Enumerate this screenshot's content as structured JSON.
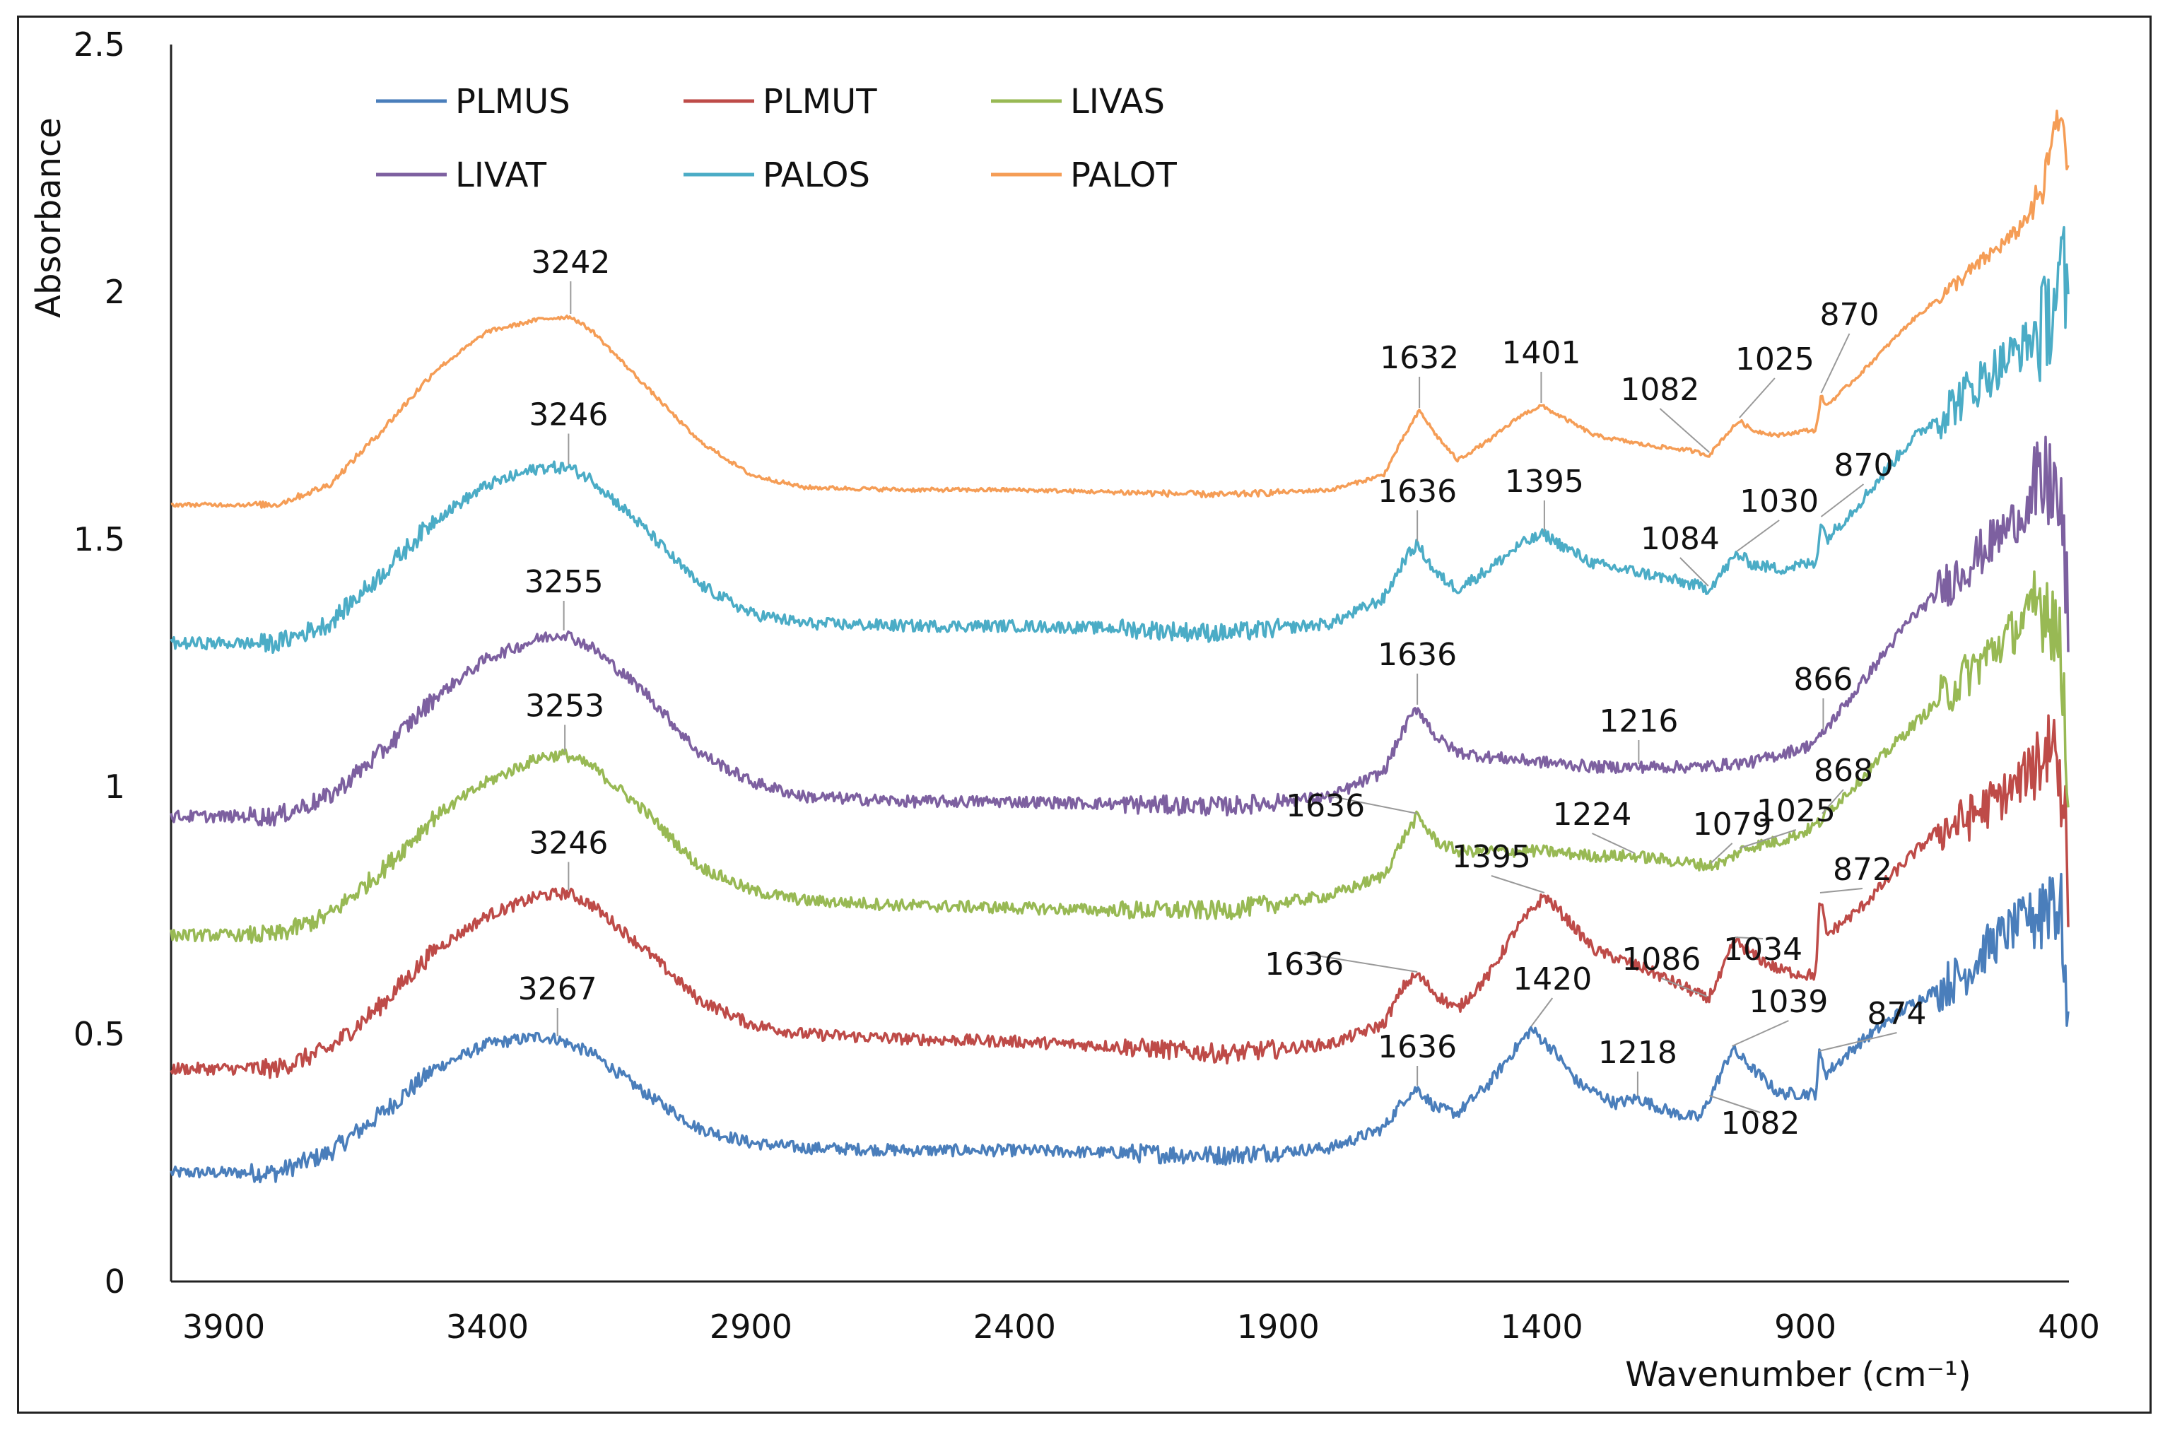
{
  "chart_data": {
    "type": "line",
    "title": "",
    "xlabel": "Wavenumber (cm⁻¹)",
    "ylabel": "Absorbance",
    "xlim": [
      4000,
      400
    ],
    "ylim": [
      0,
      2.5
    ],
    "x_ticks": [
      3900,
      3400,
      2900,
      2400,
      1900,
      1400,
      900,
      400
    ],
    "y_ticks": [
      0,
      0.5,
      1,
      1.5,
      2,
      2.5
    ],
    "y_tick_labels": [
      "0",
      "0.5",
      "1",
      "1.5",
      "2",
      "2.5"
    ],
    "grid": false,
    "legend_position": "top-left",
    "series": [
      {
        "name": "PLMUS",
        "color": "#4a7ebb",
        "noise": 0.012,
        "x": [
          4000,
          3800,
          3700,
          3600,
          3500,
          3400,
          3300,
          3267,
          3200,
          3100,
          3000,
          2900,
          2800,
          2600,
          2400,
          2200,
          2000,
          1800,
          1700,
          1660,
          1636,
          1600,
          1560,
          1500,
          1450,
          1420,
          1380,
          1330,
          1260,
          1218,
          1150,
          1100,
          1082,
          1060,
          1039,
          1000,
          950,
          900,
          880,
          874,
          860,
          800,
          700,
          600,
          550,
          500,
          450,
          430,
          410,
          400
        ],
        "y": [
          0.22,
          0.22,
          0.26,
          0.34,
          0.43,
          0.48,
          0.495,
          0.49,
          0.46,
          0.38,
          0.31,
          0.28,
          0.27,
          0.265,
          0.265,
          0.26,
          0.255,
          0.27,
          0.31,
          0.37,
          0.39,
          0.35,
          0.34,
          0.4,
          0.47,
          0.51,
          0.47,
          0.4,
          0.36,
          0.37,
          0.34,
          0.33,
          0.37,
          0.42,
          0.47,
          0.43,
          0.38,
          0.38,
          0.38,
          0.46,
          0.42,
          0.48,
          0.56,
          0.62,
          0.68,
          0.72,
          0.76,
          0.8,
          0.7,
          0.4
        ]
      },
      {
        "name": "PLMUT",
        "color": "#be4b48",
        "noise": 0.012,
        "x": [
          4000,
          3800,
          3700,
          3600,
          3500,
          3400,
          3300,
          3246,
          3200,
          3100,
          3000,
          2900,
          2800,
          2600,
          2400,
          2200,
          2000,
          1800,
          1700,
          1660,
          1636,
          1600,
          1560,
          1500,
          1450,
          1395,
          1350,
          1300,
          1200,
          1120,
          1086,
          1060,
          1034,
          1000,
          950,
          900,
          880,
          872,
          860,
          800,
          700,
          650,
          600,
          500,
          450,
          430,
          410,
          400
        ],
        "y": [
          0.43,
          0.43,
          0.47,
          0.56,
          0.67,
          0.74,
          0.78,
          0.785,
          0.76,
          0.67,
          0.57,
          0.52,
          0.5,
          0.49,
          0.485,
          0.475,
          0.46,
          0.48,
          0.52,
          0.6,
          0.62,
          0.58,
          0.55,
          0.62,
          0.71,
          0.78,
          0.73,
          0.67,
          0.63,
          0.59,
          0.57,
          0.62,
          0.69,
          0.66,
          0.63,
          0.62,
          0.62,
          0.78,
          0.7,
          0.75,
          0.86,
          0.91,
          0.93,
          1.0,
          1.07,
          1.1,
          1.0,
          0.75
        ]
      },
      {
        "name": "LIVAS",
        "color": "#98b954",
        "noise": 0.012,
        "x": [
          4000,
          3800,
          3700,
          3600,
          3500,
          3400,
          3300,
          3253,
          3200,
          3100,
          3000,
          2900,
          2800,
          2600,
          2400,
          2200,
          2000,
          1800,
          1700,
          1660,
          1636,
          1600,
          1560,
          1500,
          1400,
          1300,
          1224,
          1150,
          1079,
          1050,
          1025,
          1000,
          950,
          900,
          870,
          866,
          800,
          700,
          600,
          500,
          450,
          430,
          410,
          400
        ],
        "y": [
          0.7,
          0.7,
          0.74,
          0.83,
          0.94,
          1.01,
          1.06,
          1.065,
          1.04,
          0.95,
          0.84,
          0.79,
          0.77,
          0.76,
          0.755,
          0.75,
          0.75,
          0.78,
          0.82,
          0.9,
          0.94,
          0.89,
          0.87,
          0.87,
          0.87,
          0.86,
          0.86,
          0.85,
          0.84,
          0.85,
          0.87,
          0.88,
          0.89,
          0.91,
          0.93,
          0.94,
          1.01,
          1.12,
          1.22,
          1.32,
          1.38,
          1.36,
          1.2,
          1.0
        ]
      },
      {
        "name": "LIVAT",
        "color": "#7d60a0",
        "noise": 0.012,
        "x": [
          4000,
          3800,
          3700,
          3600,
          3500,
          3400,
          3300,
          3255,
          3200,
          3100,
          3000,
          2900,
          2800,
          2600,
          2400,
          2200,
          2000,
          1800,
          1700,
          1660,
          1636,
          1600,
          1560,
          1500,
          1400,
          1300,
          1216,
          1100,
          1000,
          900,
          870,
          866,
          800,
          700,
          600,
          500,
          450,
          430,
          410,
          400
        ],
        "y": [
          0.94,
          0.94,
          0.98,
          1.07,
          1.18,
          1.26,
          1.3,
          1.31,
          1.28,
          1.19,
          1.07,
          1.01,
          0.98,
          0.97,
          0.97,
          0.965,
          0.96,
          0.98,
          1.03,
          1.12,
          1.16,
          1.1,
          1.07,
          1.06,
          1.05,
          1.04,
          1.04,
          1.04,
          1.05,
          1.08,
          1.1,
          1.11,
          1.2,
          1.34,
          1.44,
          1.54,
          1.6,
          1.62,
          1.5,
          1.3
        ]
      },
      {
        "name": "PALOS",
        "color": "#4bacc6",
        "noise": 0.012,
        "x": [
          4000,
          3800,
          3700,
          3600,
          3500,
          3400,
          3300,
          3246,
          3200,
          3100,
          3000,
          2900,
          2800,
          2600,
          2400,
          2200,
          2000,
          1800,
          1700,
          1660,
          1636,
          1600,
          1560,
          1500,
          1440,
          1395,
          1350,
          1300,
          1200,
          1120,
          1084,
          1060,
          1030,
          1000,
          950,
          900,
          880,
          870,
          860,
          800,
          700,
          600,
          500,
          450,
          430,
          410,
          400
        ],
        "y": [
          1.29,
          1.29,
          1.33,
          1.43,
          1.54,
          1.61,
          1.645,
          1.645,
          1.62,
          1.52,
          1.41,
          1.35,
          1.33,
          1.325,
          1.325,
          1.32,
          1.31,
          1.33,
          1.38,
          1.46,
          1.49,
          1.43,
          1.4,
          1.44,
          1.49,
          1.51,
          1.48,
          1.45,
          1.43,
          1.41,
          1.4,
          1.43,
          1.47,
          1.45,
          1.44,
          1.45,
          1.45,
          1.54,
          1.5,
          1.57,
          1.7,
          1.79,
          1.88,
          1.92,
          1.98,
          2.05,
          1.9
        ]
      },
      {
        "name": "PALOT",
        "color": "#f59d56",
        "noise": 0.004,
        "x": [
          4000,
          3800,
          3700,
          3600,
          3500,
          3400,
          3300,
          3242,
          3200,
          3100,
          3000,
          2900,
          2800,
          2600,
          2400,
          2200,
          2000,
          1800,
          1700,
          1660,
          1632,
          1600,
          1560,
          1500,
          1440,
          1401,
          1350,
          1300,
          1200,
          1120,
          1082,
          1060,
          1025,
          1000,
          950,
          900,
          880,
          870,
          860,
          800,
          700,
          600,
          500,
          450,
          430,
          410,
          400
        ],
        "y": [
          1.57,
          1.57,
          1.61,
          1.72,
          1.84,
          1.92,
          1.945,
          1.95,
          1.92,
          1.81,
          1.7,
          1.63,
          1.605,
          1.6,
          1.6,
          1.595,
          1.59,
          1.6,
          1.63,
          1.71,
          1.76,
          1.71,
          1.66,
          1.7,
          1.75,
          1.77,
          1.74,
          1.71,
          1.69,
          1.68,
          1.67,
          1.7,
          1.74,
          1.72,
          1.71,
          1.72,
          1.72,
          1.79,
          1.77,
          1.83,
          1.94,
          2.03,
          2.12,
          2.2,
          2.32,
          2.36,
          2.2
        ]
      }
    ],
    "annotations": [
      {
        "text": "3242",
        "x": 3242,
        "y": 1.95,
        "series": "PALOT"
      },
      {
        "text": "1632",
        "x": 1632,
        "y": 1.76,
        "series": "PALOT"
      },
      {
        "text": "1401",
        "x": 1401,
        "y": 1.77,
        "series": "PALOT"
      },
      {
        "text": "1082",
        "x": 1082,
        "y": 1.67,
        "series": "PALOT"
      },
      {
        "text": "1025",
        "x": 1025,
        "y": 1.74,
        "series": "PALOT"
      },
      {
        "text": "870",
        "x": 870,
        "y": 1.79,
        "series": "PALOT"
      },
      {
        "text": "3246",
        "x": 3246,
        "y": 1.645,
        "series": "PALOS"
      },
      {
        "text": "1636",
        "x": 1636,
        "y": 1.49,
        "series": "PALOS"
      },
      {
        "text": "1395",
        "x": 1395,
        "y": 1.51,
        "series": "PALOS"
      },
      {
        "text": "1084",
        "x": 1084,
        "y": 1.4,
        "series": "PALOS"
      },
      {
        "text": "1030",
        "x": 1030,
        "y": 1.47,
        "series": "PALOS"
      },
      {
        "text": "870",
        "x": 870,
        "y": 1.54,
        "series": "PALOS"
      },
      {
        "text": "3255",
        "x": 3255,
        "y": 1.31,
        "series": "LIVAT"
      },
      {
        "text": "1636",
        "x": 1636,
        "y": 1.16,
        "series": "LIVAT"
      },
      {
        "text": "1216",
        "x": 1216,
        "y": 1.04,
        "series": "LIVAT"
      },
      {
        "text": "866",
        "x": 866,
        "y": 1.11,
        "series": "LIVAT"
      },
      {
        "text": "868",
        "x": 868,
        "y": 0.94,
        "series": "LIVAS"
      },
      {
        "text": "3253",
        "x": 3253,
        "y": 1.065,
        "series": "LIVAS"
      },
      {
        "text": "1636",
        "x": 1636,
        "y": 0.94,
        "series": "LIVAS"
      },
      {
        "text": "1224",
        "x": 1224,
        "y": 0.86,
        "series": "LIVAS"
      },
      {
        "text": "1079",
        "x": 1079,
        "y": 0.84,
        "series": "LIVAS"
      },
      {
        "text": "1025",
        "x": 1025,
        "y": 0.87,
        "series": "LIVAS"
      },
      {
        "text": "3246",
        "x": 3246,
        "y": 0.785,
        "series": "PLMUT"
      },
      {
        "text": "1395",
        "x": 1395,
        "y": 0.78,
        "series": "PLMUT"
      },
      {
        "text": "1636",
        "x": 1636,
        "y": 0.62,
        "series": "PLMUT"
      },
      {
        "text": "1086",
        "x": 1086,
        "y": 0.57,
        "series": "PLMUT"
      },
      {
        "text": "1034",
        "x": 1034,
        "y": 0.69,
        "series": "PLMUT"
      },
      {
        "text": "872",
        "x": 872,
        "y": 0.78,
        "series": "PLMUT"
      },
      {
        "text": "3267",
        "x": 3267,
        "y": 0.49,
        "series": "PLMUS"
      },
      {
        "text": "1420",
        "x": 1420,
        "y": 0.51,
        "series": "PLMUS"
      },
      {
        "text": "1636",
        "x": 1636,
        "y": 0.39,
        "series": "PLMUS"
      },
      {
        "text": "1218",
        "x": 1218,
        "y": 0.37,
        "series": "PLMUS"
      },
      {
        "text": "1039",
        "x": 1039,
        "y": 0.47,
        "series": "PLMUS"
      },
      {
        "text": "874",
        "x": 874,
        "y": 0.46,
        "series": "PLMUS"
      },
      {
        "text": "1082",
        "x": 1082,
        "y": 0.37,
        "series": "PLMUS"
      }
    ]
  }
}
